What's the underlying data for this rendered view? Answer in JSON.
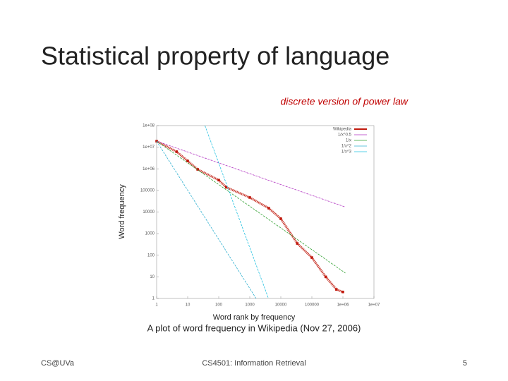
{
  "slide": {
    "title": "Statistical property of language",
    "footer": {
      "left": "CS@UVa",
      "center": "CS4501: Information Retrieval",
      "page": "5"
    }
  },
  "chart_data": {
    "type": "line",
    "annotation": "discrete version of power law",
    "xlabel": "Word rank by frequency",
    "ylabel": "Word frequency",
    "caption": "A plot of word frequency in Wikipedia (Nov 27, 2006)",
    "xscale": "log",
    "yscale": "log",
    "xlim": [
      1,
      10000000
    ],
    "ylim": [
      1,
      100000000
    ],
    "xticks": [
      1,
      10,
      100,
      1000,
      10000,
      100000,
      {
        "value": 1000000,
        "label": "1e+06"
      },
      {
        "value": 10000000,
        "label": "1e+07"
      }
    ],
    "yticks": [
      1,
      10,
      100,
      1000,
      10000,
      100000,
      {
        "value": 1000000,
        "label": "1e+06"
      },
      {
        "value": 10000000,
        "label": "1e+07"
      },
      {
        "value": 100000000,
        "label": "1e+08"
      }
    ],
    "legend": "top-right",
    "series": [
      {
        "name": "Wikipedia",
        "color": "#c0180c",
        "marker": "points",
        "x": [
          1,
          4.4,
          10,
          21,
          100,
          175,
          1000,
          4100,
          10000,
          34000,
          100000,
          280000,
          620000,
          1000000
        ],
        "values": [
          19000000,
          6200000,
          2300000,
          940000,
          300000,
          140000,
          47000,
          15000,
          4900,
          350,
          78,
          10,
          2.6,
          2
        ]
      },
      {
        "name": "1/x^0.5",
        "color": "#b030c0",
        "x": [
          1,
          1200000
        ],
        "values": [
          19000000,
          17000
        ]
      },
      {
        "name": "1/x",
        "color": "#30a030",
        "x": [
          1,
          1200000
        ],
        "values": [
          19000000,
          15
        ]
      },
      {
        "name": "1/x^2",
        "color": "#30b0d0",
        "x": [
          1,
          1600
        ],
        "values": [
          19000000,
          1
        ]
      },
      {
        "name": "1/x^3",
        "color": "#20c0e0",
        "x": [
          36,
          4000
        ],
        "values": [
          100000000,
          1
        ]
      }
    ]
  }
}
